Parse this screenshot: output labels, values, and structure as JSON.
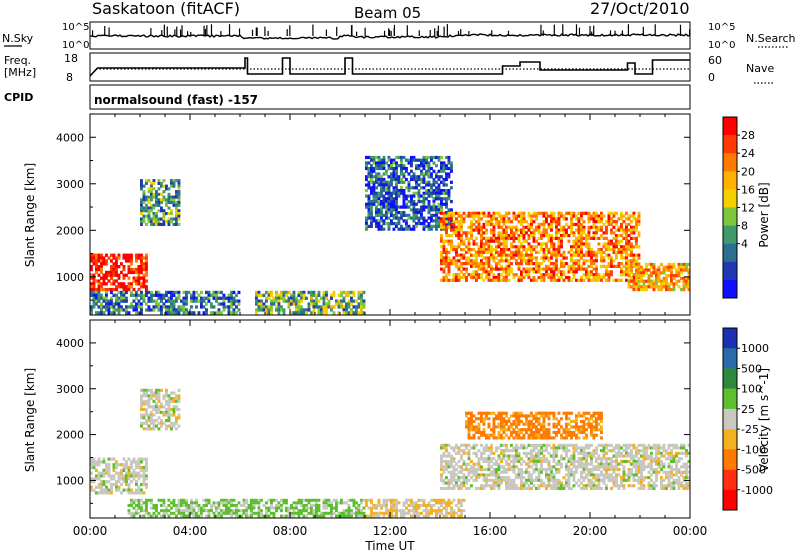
{
  "header": {
    "station": "Saskatoon (fitACF)",
    "beam": "Beam 05",
    "date": "27/Oct/2010"
  },
  "top_panels": {
    "nsky_label": "N.Sky",
    "nsearch_label": "N.Search",
    "freq_label_1": "Freq.",
    "freq_label_2": "[MHz]",
    "nave_label": "Nave",
    "cpid_label": "CPID",
    "cpid_value": "normalsound (fast) -157",
    "noise_tick_top": "10^5",
    "noise_tick_bottom": "10^0",
    "noise_rtick_top": "10^5",
    "noise_rtick_bottom": "10^0",
    "freq_ticks": [
      "18",
      "8"
    ],
    "nave_ticks": [
      "60",
      "0"
    ]
  },
  "colorbars": {
    "power_title": "Power [dB]",
    "power_ticks": [
      "28",
      "24",
      "20",
      "16",
      "12",
      "8",
      "4"
    ],
    "power_colors": [
      "#ff0000",
      "#ff3b00",
      "#ff7a00",
      "#ffb000",
      "#f5d000",
      "#7fc63a",
      "#3e9a6a",
      "#2a6f8f",
      "#2038b0",
      "#1010ff"
    ],
    "velocity_title": "Velocity [m s^-1]",
    "velocity_ticks": [
      "1000",
      "500",
      "100",
      "25",
      "-25",
      "-100",
      "-500",
      "-1000"
    ],
    "velocity_colors": [
      "#1d2fb5",
      "#2a6aa8",
      "#2e8a3a",
      "#5cc02e",
      "#c8c8c0",
      "#f5b020",
      "#ff7a00",
      "#ff3010",
      "#ff0000"
    ]
  },
  "chart_data": [
    {
      "type": "heatmap",
      "title": "Power",
      "xlabel": "",
      "ylabel": "Slant Range [km]",
      "xlim": [
        "00:00",
        "00:00"
      ],
      "ylim": [
        180,
        4500
      ],
      "x_ticks": [
        "00:00",
        "04:00",
        "08:00",
        "12:00",
        "16:00",
        "20:00",
        "00:00"
      ],
      "y_ticks": [
        1000,
        2000,
        3000,
        4000
      ],
      "colorbar": "Power [dB]",
      "regions": [
        {
          "t0": 0.0,
          "t1": 2.3,
          "r0": 700,
          "r1": 1500,
          "power": 28
        },
        {
          "t0": 2.0,
          "t1": 3.6,
          "r0": 2100,
          "r1": 3100,
          "power": 10
        },
        {
          "t0": 0.0,
          "t1": 6.0,
          "r0": 200,
          "r1": 700,
          "power": 8
        },
        {
          "t0": 6.6,
          "t1": 11.0,
          "r0": 200,
          "r1": 700,
          "power": 12
        },
        {
          "t0": 11.0,
          "t1": 14.5,
          "r0": 2000,
          "r1": 3600,
          "power": 6
        },
        {
          "t0": 14.0,
          "t1": 22.0,
          "r0": 900,
          "r1": 2400,
          "power": 22
        },
        {
          "t0": 21.5,
          "t1": 24.0,
          "r0": 700,
          "r1": 1300,
          "power": 20
        }
      ]
    },
    {
      "type": "heatmap",
      "title": "Velocity",
      "xlabel": "Time UT",
      "ylabel": "Slant Range [km]",
      "xlim": [
        "00:00",
        "00:00"
      ],
      "ylim": [
        180,
        4500
      ],
      "x_ticks": [
        "00:00",
        "04:00",
        "08:00",
        "12:00",
        "16:00",
        "20:00",
        "00:00"
      ],
      "y_ticks": [
        1000,
        2000,
        3000,
        4000
      ],
      "colorbar": "Velocity [m s^-1]",
      "regions": [
        {
          "t0": 0.0,
          "t1": 2.3,
          "r0": 700,
          "r1": 1500,
          "velocity": 0
        },
        {
          "t0": 2.0,
          "t1": 3.6,
          "r0": 2100,
          "r1": 3000,
          "velocity": 0
        },
        {
          "t0": 1.5,
          "t1": 11.0,
          "r0": 200,
          "r1": 600,
          "velocity": 150
        },
        {
          "t0": 11.0,
          "t1": 15.0,
          "r0": 200,
          "r1": 600,
          "velocity": -100
        },
        {
          "t0": 15.0,
          "t1": 20.5,
          "r0": 1900,
          "r1": 2500,
          "velocity": -400
        },
        {
          "t0": 14.0,
          "t1": 24.0,
          "r0": 800,
          "r1": 1800,
          "velocity": 0
        }
      ]
    }
  ]
}
